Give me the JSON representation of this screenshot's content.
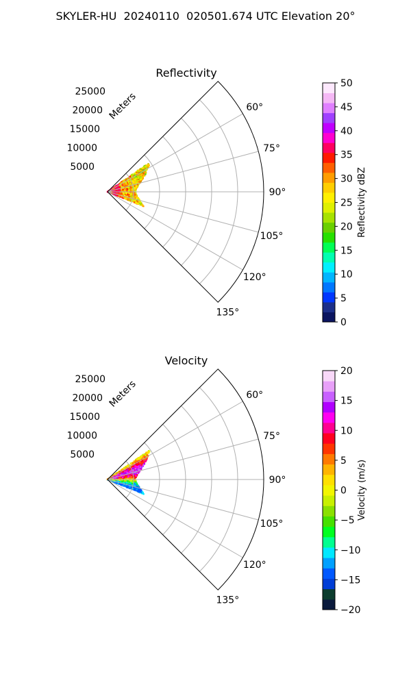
{
  "figure": {
    "title": "SKYLER-HU  20240110  020501.674 UTC Elevation 20°"
  },
  "chart_data": [
    {
      "type": "heatmap",
      "title": "Reflectivity",
      "projection": "polar-sector",
      "theta_range_deg": [
        45,
        135
      ],
      "r_max": 30000,
      "radius_axis_label": "Meters",
      "r_ticks": [
        5000,
        10000,
        15000,
        20000,
        25000
      ],
      "r_tick_labels": [
        "5000",
        "10000",
        "15000",
        "20000",
        "25000"
      ],
      "theta_ticks": [
        60,
        75,
        90,
        105,
        120,
        135
      ],
      "theta_tick_labels": [
        "60°",
        "75°",
        "90°",
        "105°",
        "120°",
        "135°"
      ],
      "grid": true,
      "echo_extent": {
        "theta_deg": [
          55,
          112
        ],
        "range_m": [
          0,
          12000
        ]
      },
      "colorbar": {
        "label": "Reflectivity dBZ",
        "range": [
          0,
          50
        ],
        "ticks": [
          0,
          5,
          10,
          15,
          20,
          25,
          30,
          35,
          40,
          45,
          50
        ],
        "tick_labels": [
          "0",
          "5",
          "10",
          "15",
          "20",
          "25",
          "30",
          "35",
          "40",
          "45",
          "50"
        ]
      }
    },
    {
      "type": "heatmap",
      "title": "Velocity",
      "projection": "polar-sector",
      "theta_range_deg": [
        45,
        135
      ],
      "r_max": 30000,
      "radius_axis_label": "Meters",
      "r_ticks": [
        5000,
        10000,
        15000,
        20000,
        25000
      ],
      "r_tick_labels": [
        "5000",
        "10000",
        "15000",
        "20000",
        "25000"
      ],
      "theta_ticks": [
        60,
        75,
        90,
        105,
        120,
        135
      ],
      "theta_tick_labels": [
        "60°",
        "75°",
        "90°",
        "105°",
        "120°",
        "135°"
      ],
      "grid": true,
      "echo_extent": {
        "theta_deg": [
          55,
          112
        ],
        "range_m": [
          0,
          12000
        ]
      },
      "colorbar": {
        "label": "Velocity (m/s)",
        "range": [
          -20,
          20
        ],
        "ticks": [
          -20,
          -15,
          -10,
          -5,
          0,
          5,
          10,
          15,
          20
        ],
        "tick_labels": [
          "−20",
          "−15",
          "−10",
          "−5",
          "0",
          "5",
          "10",
          "15",
          "20"
        ]
      }
    }
  ],
  "colors": {
    "grid": "#b0b0b0",
    "axis": "#000000",
    "reflectivity_scale": [
      "#0b1560",
      "#1c2f8a",
      "#0037ff",
      "#0077ff",
      "#00b5ff",
      "#00f0ff",
      "#00ffb0",
      "#00ff55",
      "#27e000",
      "#6ad000",
      "#a7e200",
      "#dff000",
      "#fff000",
      "#ffce00",
      "#ff9d00",
      "#ff5f00",
      "#ff1a00",
      "#ff0060",
      "#ff00d0",
      "#c000ff",
      "#a040ff",
      "#e080ff",
      "#f5b8f5",
      "#fde8fd"
    ],
    "velocity_scale": [
      "#0a1a3c",
      "#0c3d2e",
      "#003ed6",
      "#0058ff",
      "#00a0ff",
      "#00e8ff",
      "#00ff90",
      "#00ff20",
      "#46e000",
      "#8ae000",
      "#c8f000",
      "#f2f600",
      "#ffe000",
      "#ffb400",
      "#ff7a00",
      "#ff3500",
      "#ff0020",
      "#ff0090",
      "#ff00f0",
      "#b000ff",
      "#c860ff",
      "#e8a0f8",
      "#f8d8f8"
    ]
  }
}
